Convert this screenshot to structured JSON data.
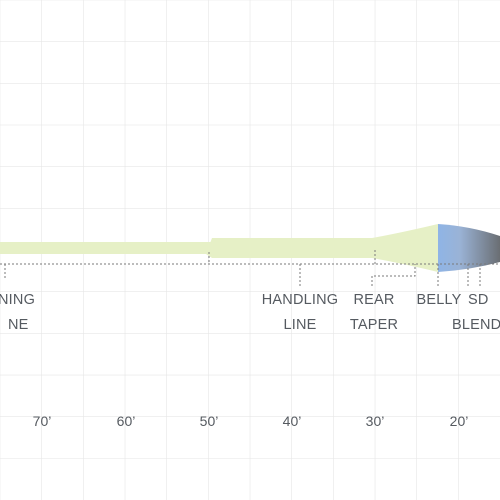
{
  "diagram": {
    "labels": {
      "running_line": [
        "NING",
        "NE"
      ],
      "handling_line": [
        "HANDLING",
        "LINE"
      ],
      "rear_taper": [
        "REAR",
        "TAPER"
      ],
      "belly": "BELLY",
      "sd_blend": [
        "SD",
        "BLEND"
      ]
    },
    "distance_marks": [
      "70’",
      "60’",
      "50’",
      "40’",
      "30’",
      "20’"
    ],
    "colors": {
      "line": "#e6f0c6",
      "head_blue": "#8fb4e6",
      "head_gray": "#6f7378",
      "grid": "#e6e6e6",
      "bracket": "#7a7a7a",
      "text": "#555a60"
    }
  }
}
